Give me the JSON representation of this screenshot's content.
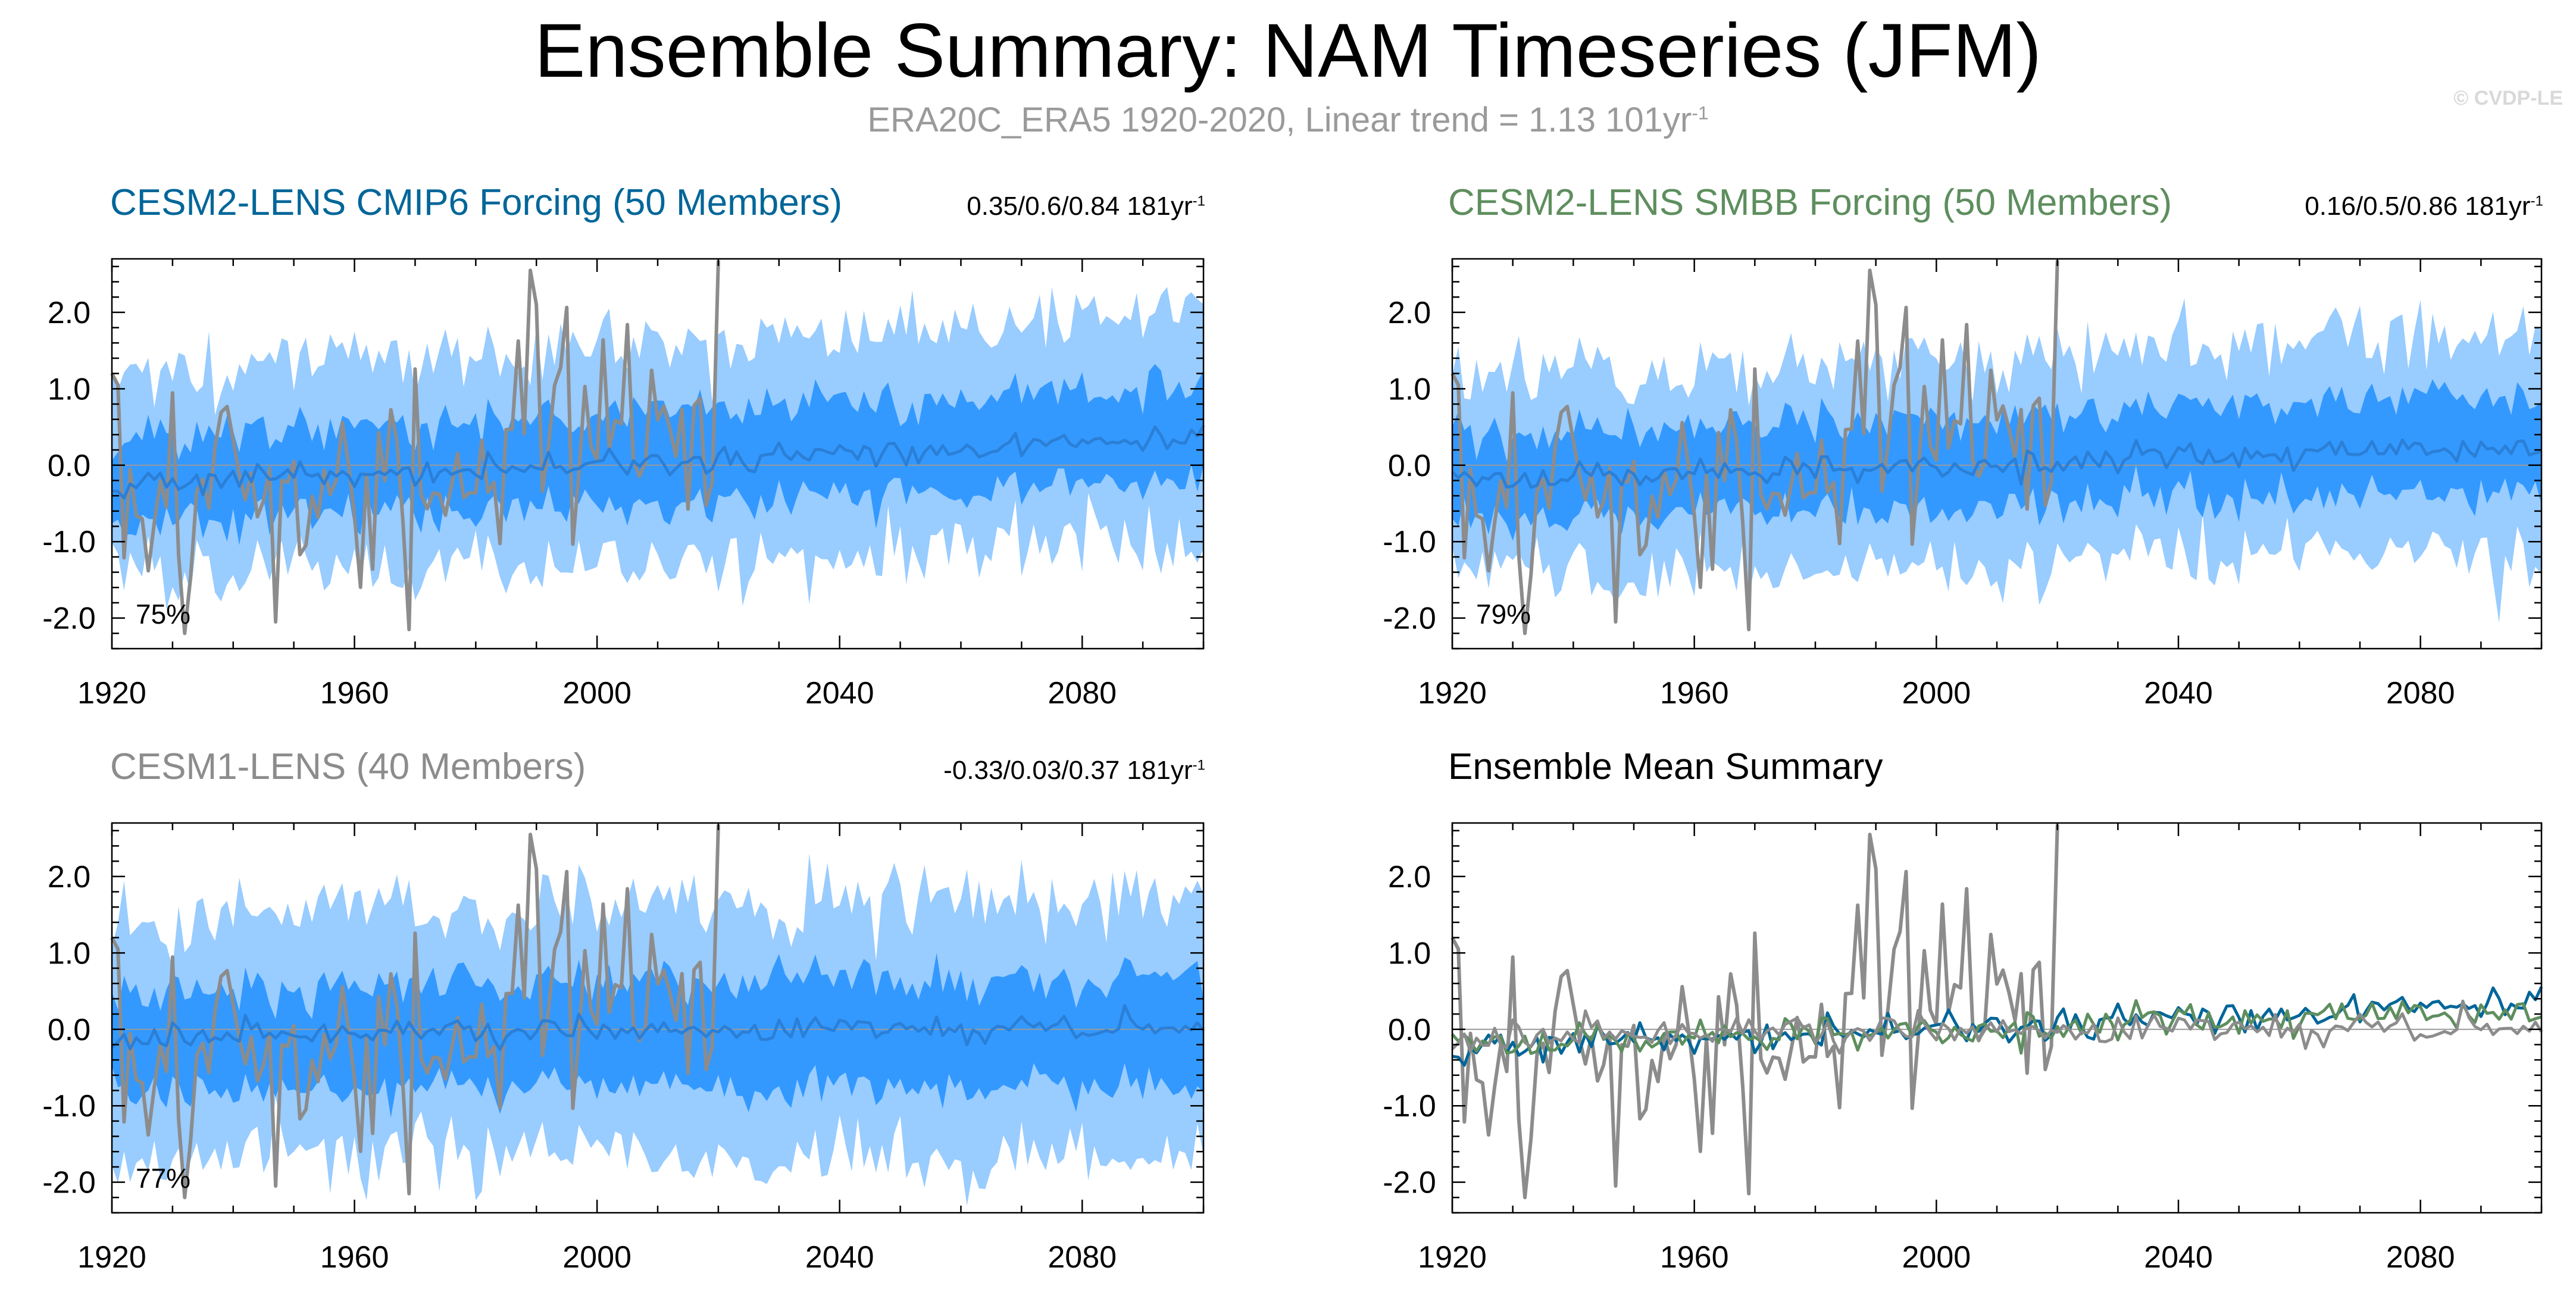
{
  "title": "Ensemble Summary: NAM Timeseries (JFM)",
  "subtitle_main": "ERA20C_ERA5 1920-2020, Linear trend = 1.13 101yr",
  "subtitle_sup": "-1",
  "credit": "© CVDP-LE",
  "colors": {
    "outer_band": "#99ccff",
    "inner_band": "#3399ff",
    "ens_mean": "#2b7fd6",
    "obs": "#8c8c8c",
    "cesm2_cmip6": "#006699",
    "cesm2_smbb": "#5e8e5e",
    "cesm1": "#8c8c8c"
  },
  "panels": [
    {
      "title": "CESM2-LENS CMIP6 Forcing (50 Members)",
      "stat": "0.35/0.6/0.84 181yr",
      "stat_sup": "-1",
      "pct": "75%"
    },
    {
      "title": "CESM2-LENS SMBB Forcing (50 Members)",
      "stat": "0.16/0.5/0.86 181yr",
      "stat_sup": "-1",
      "pct": "79%"
    },
    {
      "title": "CESM1-LENS (40 Members)",
      "stat": "-0.33/0.03/0.37 181yr",
      "stat_sup": "-1",
      "pct": "77%"
    },
    {
      "title": "Ensemble Mean Summary"
    }
  ],
  "chart_data": [
    {
      "type": "area",
      "title": "CESM2-LENS CMIP6 Forcing (50 Members)",
      "x_range": [
        1920,
        2100
      ],
      "ylim": [
        -2.4,
        2.7
      ],
      "x_ticks": [
        1920,
        1960,
        2000,
        2040,
        2080
      ],
      "y_ticks": [
        "2.0",
        "1.0",
        "0.0",
        "-1.0",
        "-2.0"
      ],
      "series": [
        {
          "name": "Outer ensemble band (min-max)",
          "approx_range": [
            -1.3,
            1.5
          ]
        },
        {
          "name": "Inner ensemble band (interquartile)",
          "approx_range": [
            -0.6,
            0.7
          ]
        },
        {
          "name": "Ensemble mean",
          "start": -0.25,
          "end": 0.35
        },
        {
          "name": "ERA20C_ERA5",
          "x_range": [
            1920,
            2020
          ],
          "linear_trend": "1.13 101yr-1"
        }
      ]
    },
    {
      "type": "area",
      "title": "CESM2-LENS SMBB Forcing (50 Members)",
      "x_range": [
        1920,
        2100
      ],
      "ylim": [
        -2.4,
        2.7
      ],
      "x_ticks": [
        1920,
        1960,
        2000,
        2040,
        2080
      ],
      "y_ticks": [
        "2.0",
        "1.0",
        "0.0",
        "-1.0",
        "-2.0"
      ],
      "series": [
        {
          "name": "Outer ensemble band (min-max)",
          "approx_range": [
            -1.3,
            1.4
          ]
        },
        {
          "name": "Inner ensemble band (interquartile)",
          "approx_range": [
            -0.6,
            0.7
          ]
        },
        {
          "name": "Ensemble mean",
          "start": -0.2,
          "end": 0.25
        },
        {
          "name": "ERA20C_ERA5",
          "x_range": [
            1920,
            2020
          ],
          "linear_trend": "1.13 101yr-1"
        }
      ]
    },
    {
      "type": "area",
      "title": "CESM1-LENS (40 Members)",
      "x_range": [
        1920,
        2100
      ],
      "ylim": [
        -2.4,
        2.7
      ],
      "x_ticks": [
        1920,
        1960,
        2000,
        2040,
        2080
      ],
      "y_ticks": [
        "2.0",
        "1.0",
        "0.0",
        "-1.0",
        "-2.0"
      ],
      "series": [
        {
          "name": "Outer ensemble band (min-max)",
          "approx_range": [
            -1.6,
            1.6
          ]
        },
        {
          "name": "Inner ensemble band (interquartile)",
          "approx_range": [
            -0.8,
            0.7
          ]
        },
        {
          "name": "Ensemble mean",
          "start": -0.1,
          "end": 0.05
        },
        {
          "name": "ERA20C_ERA5",
          "x_range": [
            1920,
            2020
          ],
          "linear_trend": "1.13 101yr-1"
        }
      ]
    },
    {
      "type": "line",
      "title": "Ensemble Mean Summary",
      "x_range": [
        1920,
        2100
      ],
      "ylim": [
        -2.4,
        2.7
      ],
      "x_ticks": [
        1920,
        1960,
        2000,
        2040,
        2080
      ],
      "y_ticks": [
        "2.0",
        "1.0",
        "0.0",
        "-1.0",
        "-2.0"
      ],
      "series": [
        {
          "name": "CESM2-LENS CMIP6 ensemble mean",
          "start": -0.25,
          "end": 0.35
        },
        {
          "name": "CESM2-LENS SMBB ensemble mean",
          "start": -0.2,
          "end": 0.25
        },
        {
          "name": "CESM1-LENS ensemble mean",
          "start": -0.1,
          "end": 0.05
        },
        {
          "name": "ERA20C_ERA5",
          "x_range": [
            1920,
            2020
          ]
        }
      ]
    }
  ]
}
